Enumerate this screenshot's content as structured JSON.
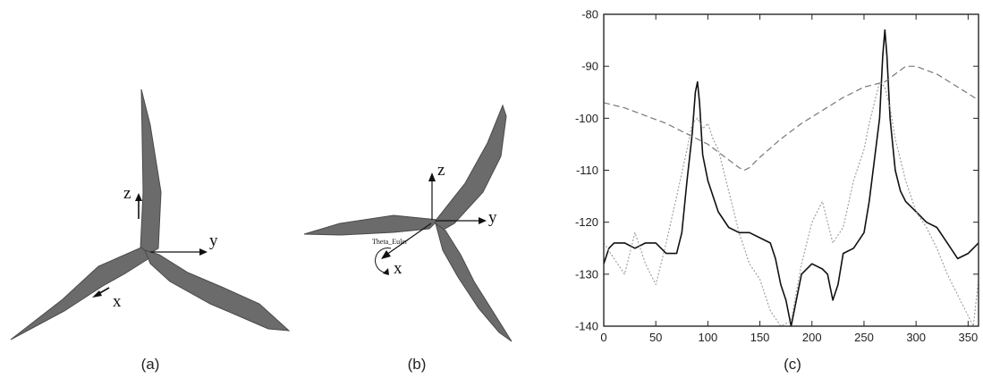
{
  "panels": {
    "a": {
      "caption": "(a)",
      "axes": {
        "z": "z",
        "y": "y",
        "x": "x"
      }
    },
    "b": {
      "caption": "(b)",
      "axes": {
        "z": "z",
        "y": "y",
        "x": "x"
      },
      "angle_label": "Theta_Euler"
    },
    "c": {
      "caption": "(c)"
    }
  },
  "colors": {
    "blade": "#6b6b6b",
    "axis": "#111111",
    "solid_series": "#111111",
    "dashed_series": "#777777",
    "dotted_series": "#9a9a9a"
  },
  "chart_data": {
    "type": "line",
    "title": "",
    "xlabel": "",
    "ylabel": "",
    "xlim": [
      0,
      360
    ],
    "ylim": [
      -140,
      -80
    ],
    "xticks": [
      0,
      50,
      100,
      150,
      200,
      250,
      300,
      350
    ],
    "yticks": [
      -80,
      -90,
      -100,
      -110,
      -120,
      -130,
      -140
    ],
    "series": [
      {
        "style": "solid",
        "color": "#111111",
        "width": 1.6,
        "x": [
          0,
          5,
          10,
          20,
          30,
          40,
          50,
          60,
          70,
          75,
          80,
          85,
          88,
          90,
          92,
          95,
          100,
          105,
          110,
          120,
          130,
          140,
          150,
          160,
          165,
          170,
          175,
          180,
          185,
          190,
          200,
          210,
          215,
          220,
          225,
          230,
          240,
          250,
          255,
          260,
          265,
          268,
          270,
          272,
          275,
          280,
          285,
          290,
          300,
          310,
          320,
          330,
          340,
          350,
          355,
          360
        ],
        "y": [
          -128,
          -125,
          -124,
          -124,
          -125,
          -124,
          -124,
          -126,
          -126,
          -122,
          -112,
          -103,
          -95,
          -93,
          -97,
          -107,
          -112,
          -115,
          -118,
          -121,
          -122,
          -122,
          -123,
          -124,
          -127,
          -132,
          -135,
          -140,
          -135,
          -130,
          -128,
          -129,
          -130,
          -135,
          -132,
          -126,
          -125,
          -122,
          -116,
          -108,
          -100,
          -88,
          -83,
          -88,
          -100,
          -110,
          -114,
          -116,
          -118,
          -120,
          -121,
          -124,
          -127,
          -126,
          -125,
          -124
        ]
      },
      {
        "style": "dashed",
        "color": "#777777",
        "width": 1.2,
        "x": [
          0,
          20,
          40,
          60,
          80,
          100,
          110,
          120,
          130,
          135,
          140,
          150,
          170,
          190,
          210,
          230,
          250,
          260,
          270,
          280,
          290,
          300,
          320,
          340,
          360
        ],
        "y": [
          -97,
          -98,
          -99.5,
          -101,
          -103,
          -105,
          -106.5,
          -108,
          -109.5,
          -110,
          -109.5,
          -107.5,
          -104,
          -101,
          -98.5,
          -96,
          -94,
          -93.5,
          -93,
          -91.5,
          -90,
          -90,
          -91.5,
          -94,
          -96.5
        ]
      },
      {
        "style": "dotted",
        "color": "#9a9a9a",
        "width": 1.1,
        "x": [
          0,
          10,
          20,
          30,
          40,
          50,
          60,
          70,
          80,
          85,
          90,
          95,
          100,
          105,
          110,
          120,
          130,
          140,
          150,
          160,
          170,
          180,
          190,
          200,
          210,
          220,
          230,
          240,
          250,
          255,
          260,
          265,
          270,
          275,
          280,
          290,
          300,
          310,
          320,
          330,
          340,
          350,
          355,
          360
        ],
        "y": [
          -124,
          -127,
          -130,
          -122,
          -128,
          -132,
          -124,
          -115,
          -106,
          -101,
          -100,
          -102,
          -101,
          -104,
          -106,
          -114,
          -122,
          -128,
          -131,
          -137,
          -140,
          -139,
          -128,
          -120,
          -116,
          -124,
          -121,
          -112,
          -106,
          -101,
          -97,
          -93,
          -94,
          -98,
          -104,
          -112,
          -118,
          -121,
          -125,
          -130,
          -134,
          -138,
          -140,
          -131
        ]
      }
    ]
  }
}
